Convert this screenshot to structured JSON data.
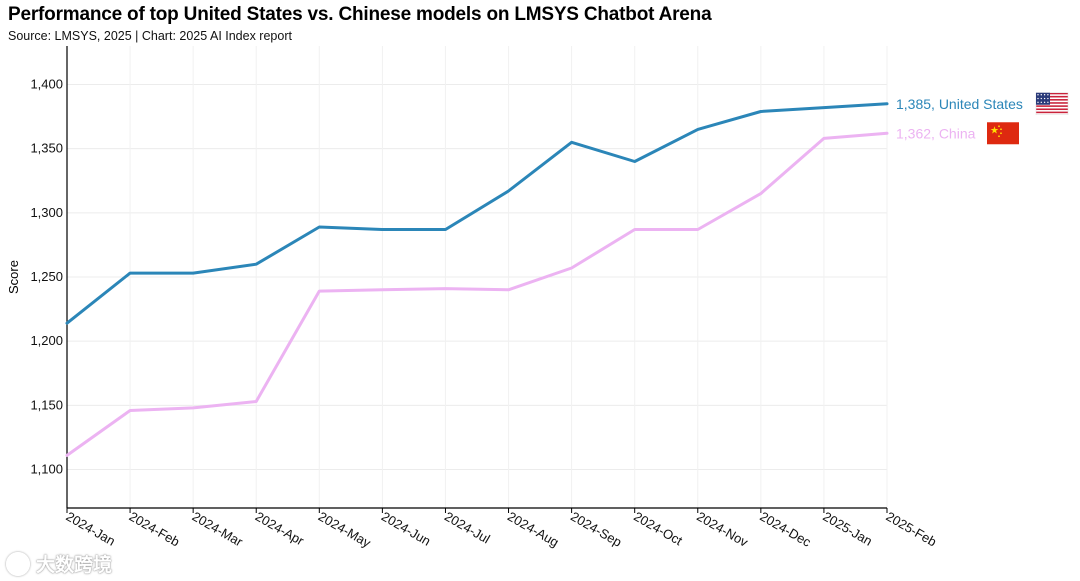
{
  "title": "Performance of top United States vs. Chinese models on LMSYS Chatbot Arena",
  "subtitle": "Source: LMSYS, 2025 | Chart: 2025 AI Index report",
  "watermark": "大数跨境",
  "chart_data": {
    "type": "line",
    "ylabel": "Score",
    "xlabel": "",
    "ylim": [
      1070,
      1430
    ],
    "yticks": [
      1100,
      1150,
      1200,
      1250,
      1300,
      1350,
      1400
    ],
    "ytick_labels": [
      "1,100",
      "1,150",
      "1,200",
      "1,250",
      "1,300",
      "1,350",
      "1,400"
    ],
    "categories": [
      "2024-Jan",
      "2024-Feb",
      "2024-Mar",
      "2024-Apr",
      "2024-May",
      "2024-Jun",
      "2024-Jul",
      "2024-Aug",
      "2024-Sep",
      "2024-Oct",
      "2024-Nov",
      "2024-Dec",
      "2025-Jan",
      "2025-Feb"
    ],
    "grid": true,
    "series": [
      {
        "name": "United States",
        "label": "1,385, United States",
        "color": "#2b86b8",
        "flag": "us-flag",
        "values": [
          1214,
          1253,
          1253,
          1260,
          1289,
          1287,
          1287,
          1317,
          1355,
          1340,
          1365,
          1379,
          1382,
          1385
        ]
      },
      {
        "name": "China",
        "label": "1,362, China",
        "color": "#ecb3f2",
        "flag": "china-flag",
        "values": [
          1111,
          1146,
          1148,
          1153,
          1239,
          1240,
          1241,
          1240,
          1257,
          1287,
          1287,
          1315,
          1358,
          1362
        ]
      }
    ]
  }
}
